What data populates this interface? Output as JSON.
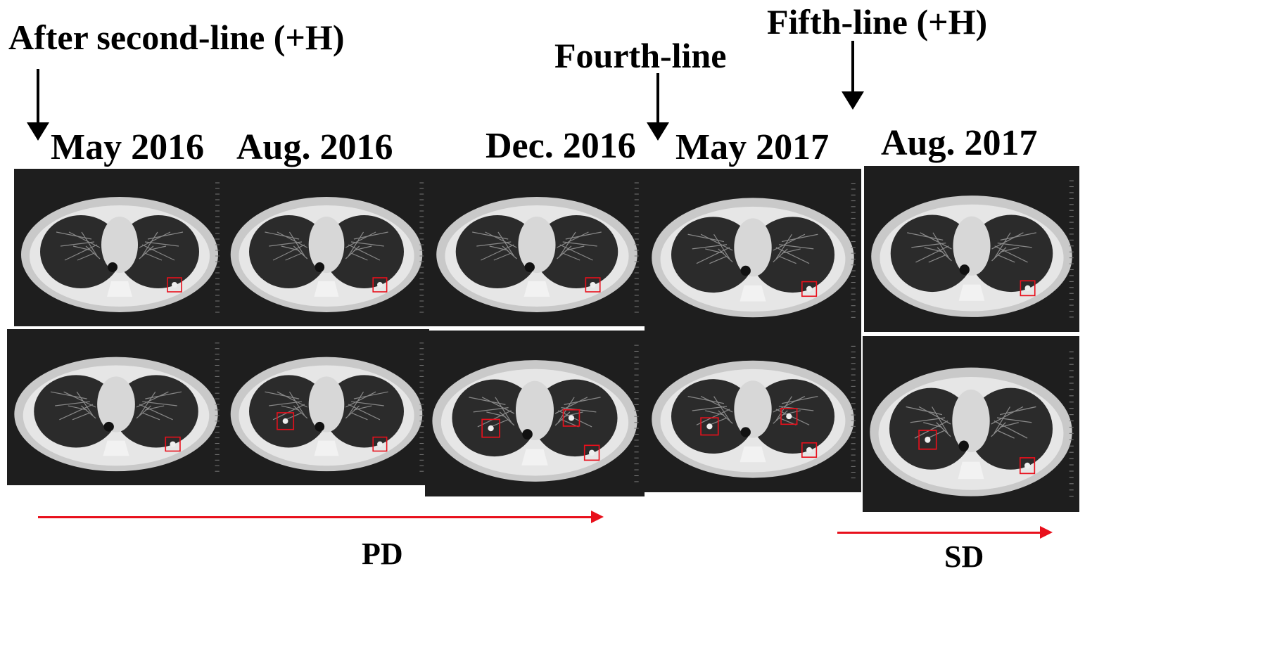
{
  "treatments": {
    "second_line": "After second-line (+H)",
    "fourth_line": "Fourth-line",
    "fifth_line": "Fifth-line (+H)"
  },
  "dates": [
    "May  2016",
    "Aug. 2016",
    "Dec. 2016",
    "May  2017",
    "Aug. 2017"
  ],
  "responses": {
    "pd": "PD",
    "sd": "SD"
  },
  "colors": {
    "arrow": "#000000",
    "progress_line": "#e8101c",
    "lesion_box": "#e8101c"
  },
  "scans": [
    {
      "date": "May  2016",
      "upper_lesions": 1,
      "lower_lesions": 1
    },
    {
      "date": "Aug. 2016",
      "upper_lesions": 1,
      "lower_lesions": 2
    },
    {
      "date": "Dec. 2016",
      "upper_lesions": 1,
      "lower_lesions": 3
    },
    {
      "date": "May  2017",
      "upper_lesions": 1,
      "lower_lesions": 3
    },
    {
      "date": "Aug. 2017",
      "upper_lesions": 1,
      "lower_lesions": 2
    }
  ]
}
